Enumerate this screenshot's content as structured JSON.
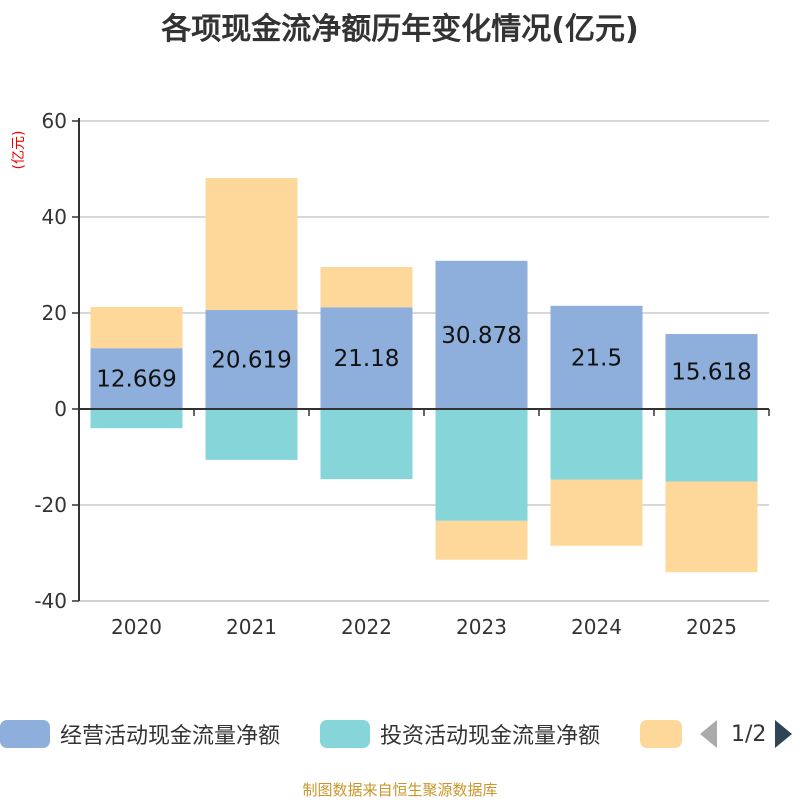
{
  "title": "各项现金流净额历年变化情况(亿元)",
  "y_unit_label": "(亿元)",
  "legend": {
    "items": [
      {
        "label": "经营活动现金流量净额",
        "color": "#8eaedb"
      },
      {
        "label": "投资活动现金流量净额",
        "color": "#86d5d8"
      },
      {
        "label": "",
        "color": "#fed89a"
      }
    ],
    "page": "1/2",
    "prev_icon": "triangle-left-icon",
    "next_icon": "triangle-right-icon"
  },
  "source": "制图数据来自恒生聚源数据库",
  "chart_data": {
    "type": "bar",
    "stacked": true,
    "title": "各项现金流净额历年变化情况(亿元)",
    "xlabel": "",
    "ylabel": "(亿元)",
    "categories": [
      "2020",
      "2021",
      "2022",
      "2023",
      "2024",
      "2025"
    ],
    "ylim": [
      -40,
      60
    ],
    "yticks": [
      60,
      40,
      20,
      0,
      -20,
      -40
    ],
    "grid": true,
    "legend_position": "bottom",
    "series": [
      {
        "name": "经营活动现金流量净额",
        "color": "#8eaedb",
        "values": [
          12.669,
          20.619,
          21.18,
          30.878,
          21.5,
          15.618
        ],
        "labels": [
          "12.669",
          "20.619",
          "21.18",
          "30.878",
          "21.5",
          "15.618"
        ]
      },
      {
        "name": "投资活动现金流量净额",
        "color": "#86d5d8",
        "values": [
          -4.0,
          -10.6,
          -14.6,
          -23.3,
          -14.7,
          -15.1
        ]
      },
      {
        "name": "",
        "color": "#fed89a",
        "values": [
          8.6,
          27.5,
          8.4,
          -8.1,
          -13.8,
          -18.9
        ]
      }
    ]
  }
}
